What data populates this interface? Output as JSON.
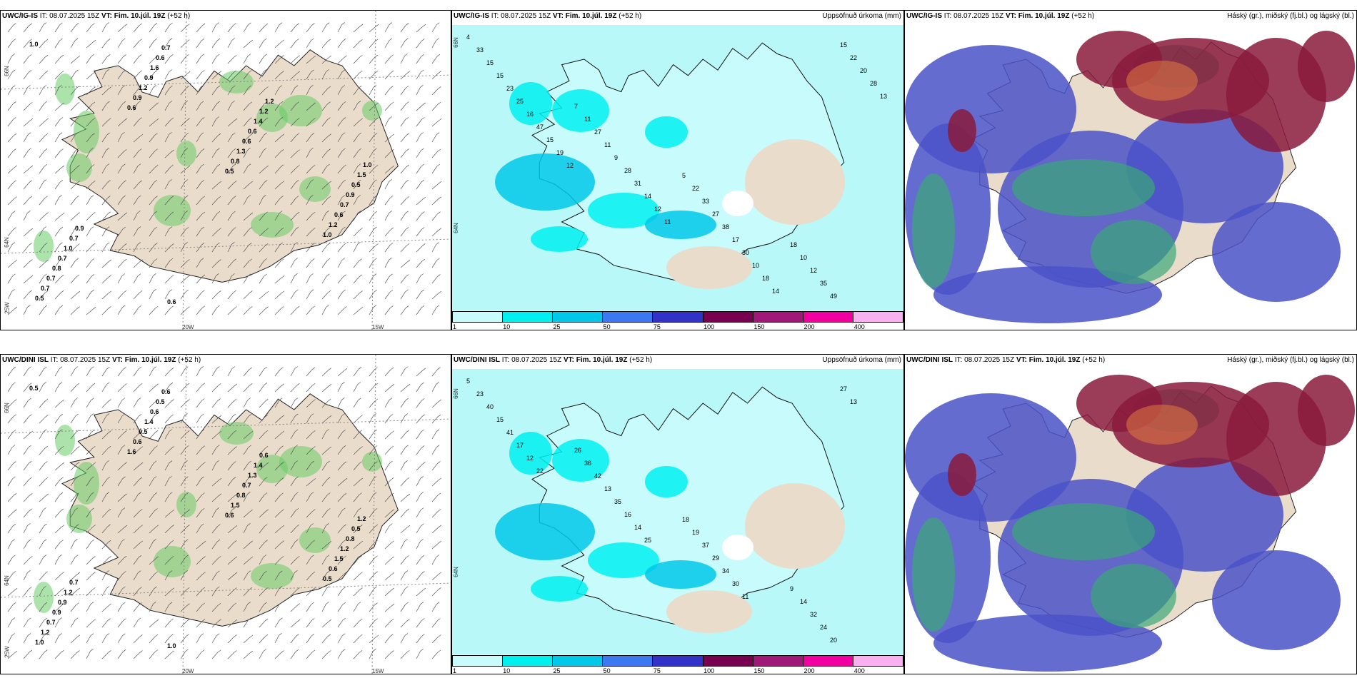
{
  "rows": [
    {
      "model": "UWC/IG-IS",
      "issue": "IT: 08.07.2025 15Z",
      "valid_label": "VT: Fim. 10.júl. 19Z",
      "lead": "(+52 h)",
      "precip_title": "Uppsöfnuð úrkoma (mm)",
      "cloud_title": "Háský (gr.), miðský (fj.bl.) og lágský (bl.)",
      "wind_values": [
        "1.0",
        "0.6",
        "0.5",
        "1.0",
        "0.5",
        "0.9",
        "0.8",
        "1.2",
        "0.7",
        "1.2",
        "1.3",
        "0.6",
        "0.7",
        "0.9",
        "0.6",
        "0.7",
        "0.8",
        "1.6",
        "0.6",
        "0.9",
        "0.7",
        "0.6",
        "1.4",
        "0.5",
        "1.0",
        "0.7",
        "1.2",
        "1.5",
        "0.7",
        "0.6",
        "1.2",
        "1.0",
        "0.9"
      ],
      "precip_values": [
        "4",
        "7",
        "5",
        "18",
        "33",
        "11",
        "22",
        "10",
        "15",
        "27",
        "33",
        "12",
        "15",
        "11",
        "27",
        "35",
        "23",
        "9",
        "38",
        "49",
        "25",
        "28",
        "17",
        "15",
        "16",
        "31",
        "30",
        "22",
        "47",
        "14",
        "10",
        "20",
        "15",
        "12",
        "18",
        "28",
        "19",
        "11",
        "14",
        "13",
        "12"
      ]
    },
    {
      "model": "UWC/DINI ISL",
      "issue": "IT: 08.07.2025 15Z",
      "valid_label": "VT: Fim. 10.júl. 19Z",
      "lead": "(+52 h)",
      "precip_title": "Uppsöfnuð úrkoma (mm)",
      "cloud_title": "Háský (gr.), miðský (fj.bl.) og lágský (bl.)",
      "wind_values": [
        "0.5",
        "1.6",
        "0.6",
        "0.5",
        "1.0",
        "0.6",
        "1.5",
        "0.6",
        "1.2",
        "0.5",
        "0.8",
        "1.5",
        "0.7",
        "1.4",
        "0.7",
        "1.2",
        "0.9",
        "0.6",
        "1.3",
        "0.8",
        "0.9",
        "0.5",
        "1.4",
        "0.5",
        "1.2",
        "0.6",
        "0.6",
        "1.2",
        "0.7",
        "1.0"
      ],
      "precip_values": [
        "5",
        "26",
        "18",
        "9",
        "23",
        "36",
        "19",
        "14",
        "40",
        "42",
        "37",
        "32",
        "15",
        "13",
        "29",
        "24",
        "41",
        "35",
        "34",
        "20",
        "17",
        "16",
        "30",
        "27",
        "12",
        "14",
        "11",
        "13",
        "22",
        "25"
      ]
    }
  ],
  "colorbar": {
    "ticks": [
      "1",
      "10",
      "25",
      "50",
      "75",
      "100",
      "150",
      "200",
      "400"
    ],
    "colors": [
      "#c8fbfb",
      "#00f0f0",
      "#00c8e8",
      "#3c78f0",
      "#3232c8",
      "#780050",
      "#a01878",
      "#f000a0",
      "#f8b0f0"
    ]
  },
  "axis": {
    "lat_top": "66N",
    "lat_bottom": "64N",
    "lon_left": "20W",
    "lon_right": "15W",
    "corner": "25W"
  },
  "colors": {
    "land": "#eadccb",
    "sea_precip": "#b8f8f8",
    "wind_green": "#66cc66",
    "cloud_blue": "#4a52c8",
    "cloud_red": "#8a1a3c",
    "cloud_green": "#3aa878"
  }
}
